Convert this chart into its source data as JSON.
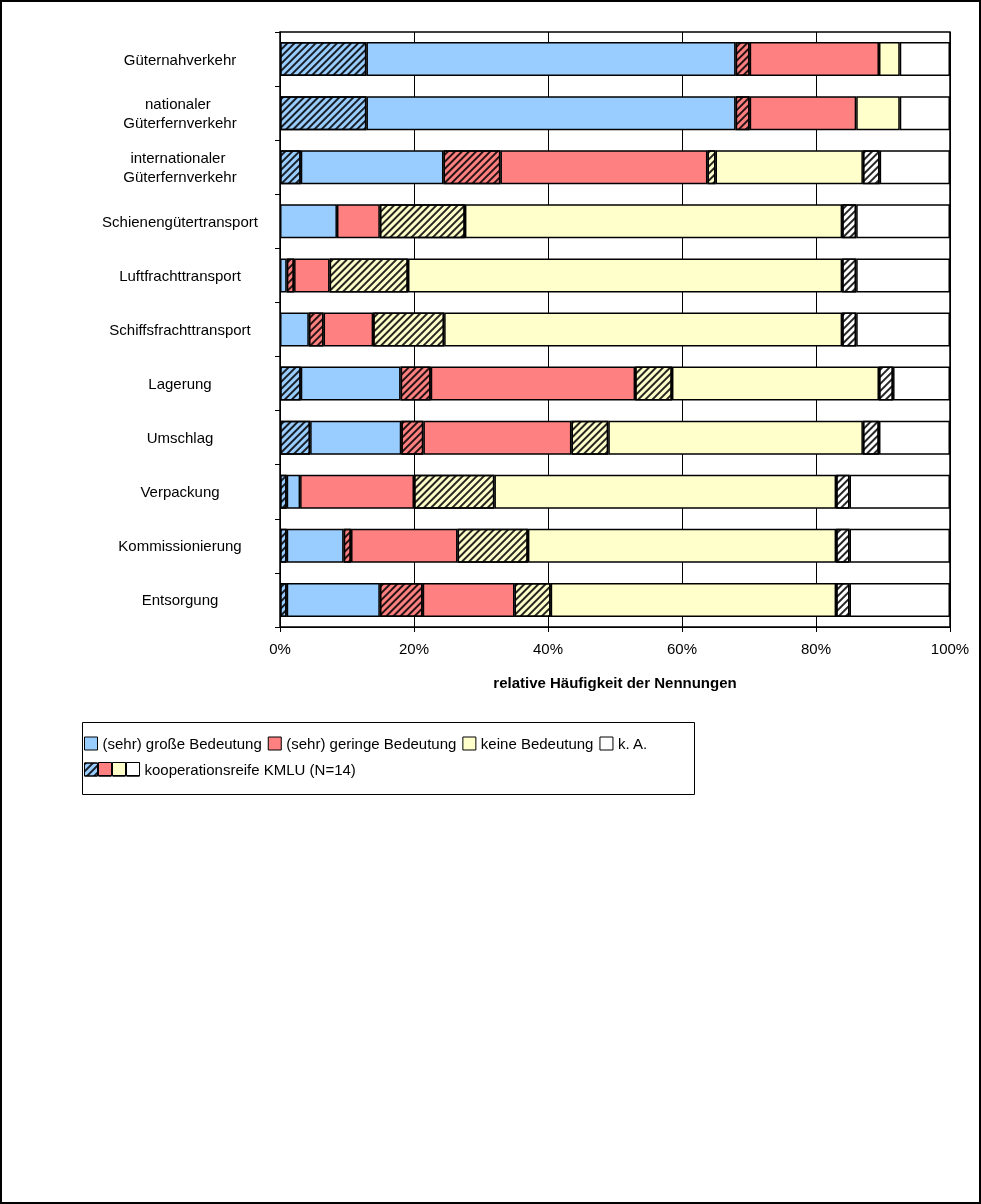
{
  "chart_data": {
    "type": "bar",
    "orientation": "horizontal",
    "stacked": true,
    "xlabel": "relative Häufigkeit der Nennungen",
    "categories": [
      "Güternahverkehr",
      "nationaler Güterfernverkehr",
      "internationaler Güterfernverkehr",
      "Schienengütertransport",
      "Luftfrachttransport",
      "Schiffsfrachttransport",
      "Lagerung",
      "Umschlag",
      "Verpackung",
      "Kommissionierung",
      "Entsorgung"
    ],
    "series": [
      {
        "name": "kooperationsreife KMLU (N=14)",
        "color": "#99ccff",
        "values": [
          12.9,
          12.9,
          3.1,
          0,
          0,
          0,
          3.1,
          4.5,
          1.0,
          1.0,
          1.0
        ]
      },
      {
        "name": "(sehr) große Bedeutung",
        "color": "#99ccff",
        "values": [
          55.1,
          55.1,
          21.3,
          8.5,
          1.0,
          4.3,
          14.9,
          13.6,
          2.0,
          8.5,
          13.9
        ]
      },
      {
        "color": "#ff8080",
        "values": [
          2.1,
          2.1,
          8.5,
          0,
          1.1,
          2.2,
          4.5,
          3.3,
          0,
          1.1,
          6.4
        ]
      },
      {
        "name": "(sehr) geringe Bedeutung",
        "color": "#ff8080",
        "values": [
          19.3,
          15.9,
          30.9,
          6.4,
          5.3,
          7.4,
          30.5,
          22.1,
          17.0,
          15.9,
          13.7
        ]
      },
      {
        "color": "#ffffcc",
        "values": [
          0,
          0,
          1.2,
          12.7,
          11.7,
          10.6,
          5.5,
          5.5,
          12.0,
          10.5,
          5.4
        ]
      },
      {
        "name": "keine Bedeutung",
        "color": "#ffffcc",
        "values": [
          3.1,
          6.5,
          22.0,
          56.3,
          64.8,
          59.4,
          30.9,
          38.0,
          51.0,
          46.0,
          42.6
        ]
      },
      {
        "color": "#ffffff",
        "values": [
          0,
          0,
          2.5,
          2.1,
          2.1,
          2.1,
          2.1,
          2.4,
          2.0,
          2.0,
          2.0
        ]
      },
      {
        "name": "k. A.",
        "color": "#ffffff",
        "values": [
          7.5,
          7.5,
          10.5,
          14.0,
          14.0,
          14.0,
          8.5,
          10.6,
          15.0,
          15.0,
          15.0
        ]
      }
    ],
    "xlim": [
      0,
      100
    ],
    "xticks": [
      {
        "value": 0,
        "label": "0%"
      },
      {
        "value": 20,
        "label": "20%"
      },
      {
        "value": 40,
        "label": "40%"
      },
      {
        "value": 60,
        "label": "60%"
      },
      {
        "value": 80,
        "label": "80%"
      },
      {
        "value": 100,
        "label": "100%"
      }
    ],
    "grid": "x",
    "legend": "bottom"
  }
}
